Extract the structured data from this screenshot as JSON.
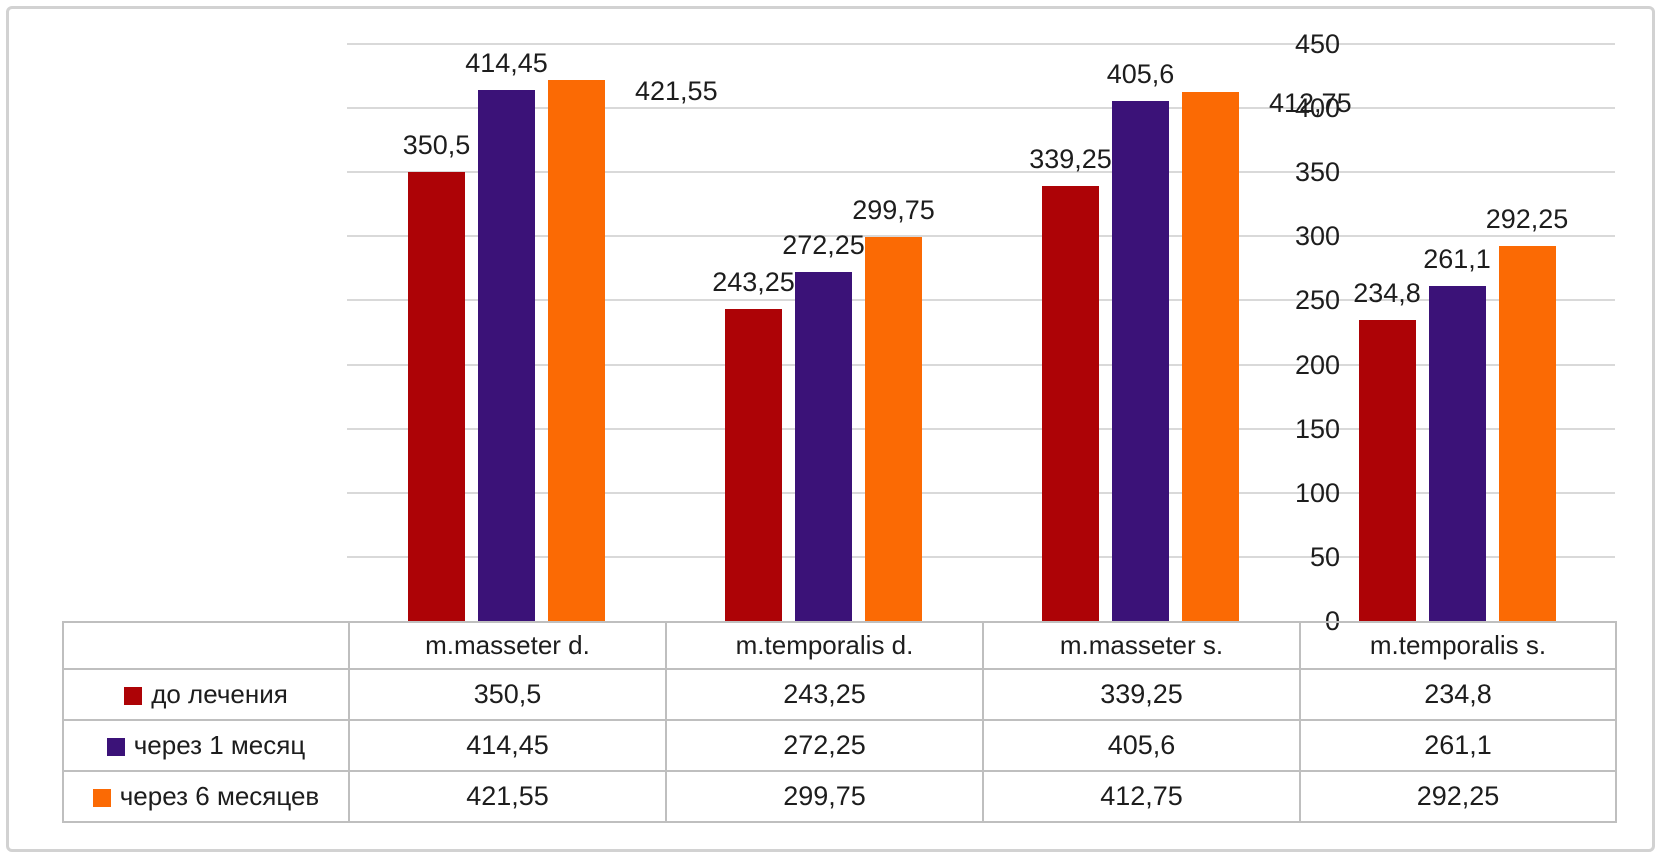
{
  "chart_data": {
    "type": "bar",
    "title": "",
    "xlabel": "",
    "ylabel": "",
    "categories": [
      "m.masseter d.",
      "m.temporalis d.",
      "m.masseter s.",
      "m.temporalis s."
    ],
    "series": [
      {
        "name": "до лечения",
        "color": "#ad0306",
        "values": [
          350.5,
          243.25,
          339.25,
          234.8
        ],
        "value_labels": [
          "350,5",
          "243,25",
          "339,25",
          "234,8"
        ],
        "table_labels": [
          "350,5",
          "243,25",
          "339,25",
          "234,8"
        ]
      },
      {
        "name": "через 1 месяц",
        "color": "#3b1278",
        "values": [
          414.45,
          272.25,
          405.6,
          261.1
        ],
        "value_labels": [
          "414,45",
          "272,25",
          "405,6",
          "261,1"
        ],
        "table_labels": [
          "414,45",
          "272,25",
          "405,6",
          "261,1"
        ]
      },
      {
        "name": "через 6 месяцев",
        "color": "#fb6a04",
        "values": [
          421.55,
          299.75,
          412.75,
          292.25
        ],
        "value_labels": [
          "421,55",
          "299,75",
          "412,75",
          "292,25"
        ],
        "table_labels": [
          "421,55",
          "299,75",
          "412,75",
          "292,25"
        ]
      }
    ],
    "y_axis": {
      "min": 0,
      "max": 450,
      "step": 50,
      "tick_labels": [
        "0",
        "50",
        "100",
        "150",
        "200",
        "250",
        "300",
        "350",
        "400",
        "450"
      ]
    },
    "grid": true,
    "data_labels": true,
    "side_placed_labels": [
      {
        "series": 2,
        "category": 0
      },
      {
        "series": 2,
        "category": 2
      }
    ],
    "legend_position": "data-table-left",
    "colors": {
      "gridline": "#d9d9d9",
      "table_border": "#bfbfbf",
      "frame_border": "#d2d2d2",
      "text": "#1d1d1d"
    }
  }
}
